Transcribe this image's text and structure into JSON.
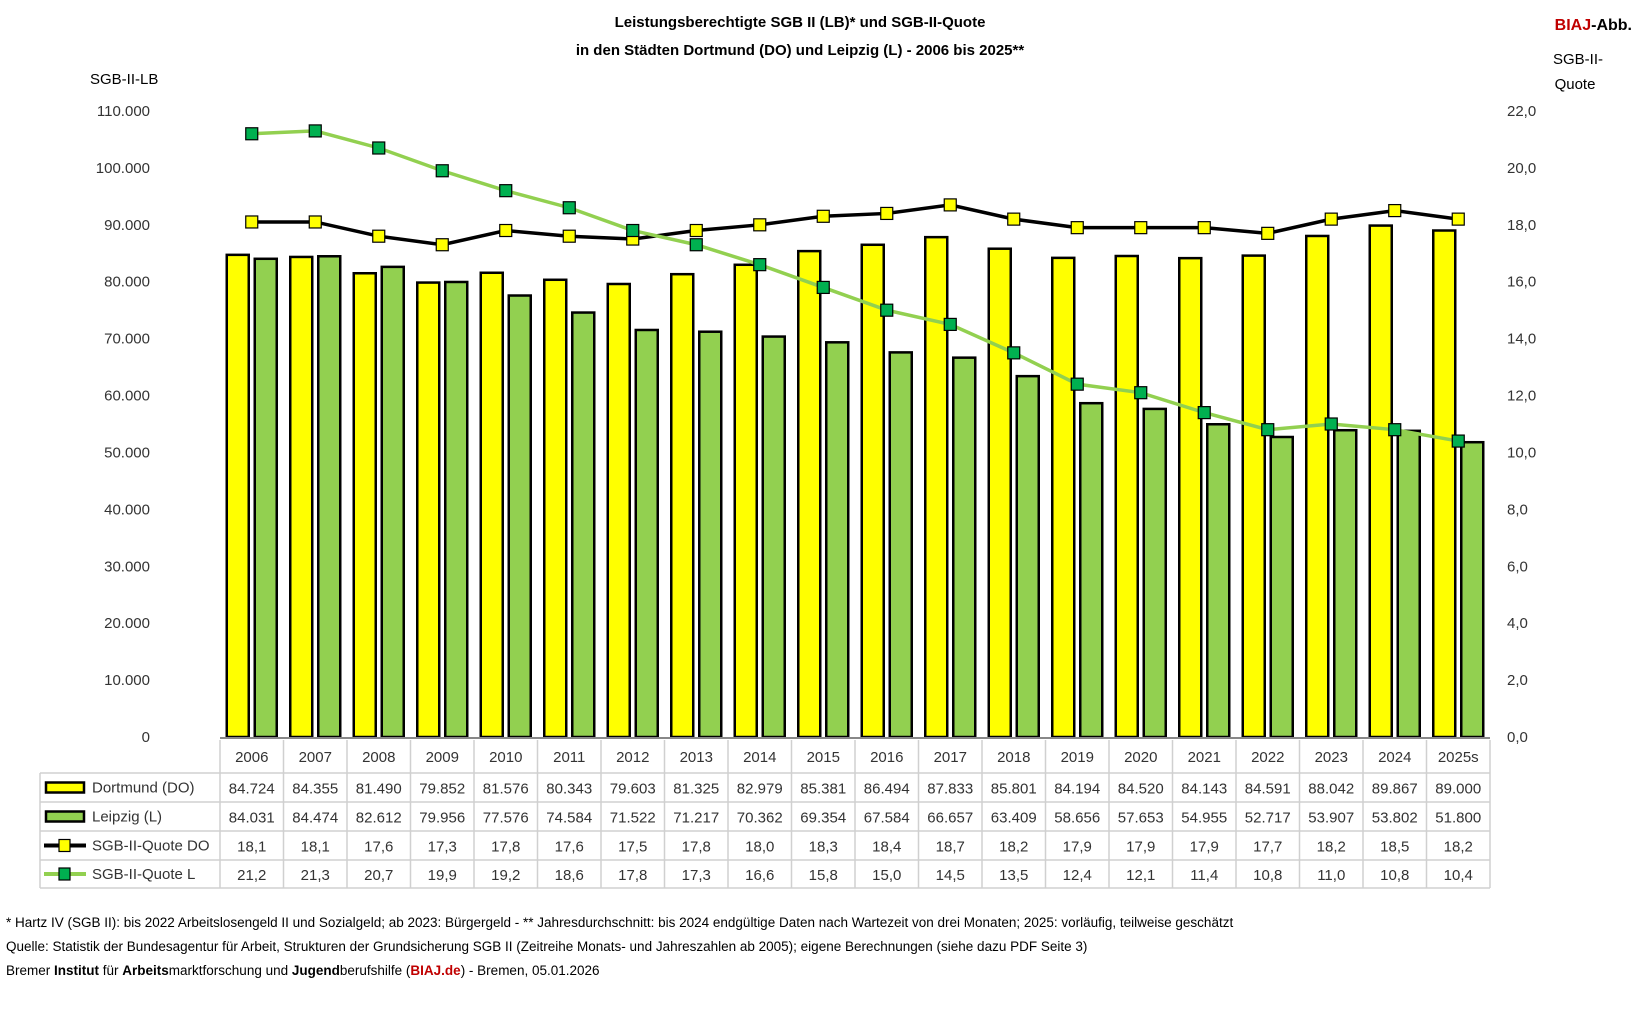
{
  "header": {
    "title_line1": "Leistungsberechtigte SGB II (LB)* und SGB-II-Quote",
    "title_line2": "in den Städten Dortmund (DO) und Leipzig (L) - 2006 bis 2025**",
    "badge_red": "BIAJ",
    "badge_rest": "-Abb."
  },
  "chart_data": {
    "type": "bar+line",
    "title": "Leistungsberechtigte SGB II (LB)* und SGB-II-Quote in den Städten Dortmund (DO) und Leipzig (L) - 2006 bis 2025**",
    "ylabel_left": "SGB-II-LB",
    "ylabel_right_line1": "SGB-II-",
    "ylabel_right_line2": "Quote",
    "ylim_left": [
      0,
      110000
    ],
    "ylim_right": [
      0,
      22
    ],
    "yticks_left": [
      "0",
      "10.000",
      "20.000",
      "30.000",
      "40.000",
      "50.000",
      "60.000",
      "70.000",
      "80.000",
      "90.000",
      "100.000",
      "110.000"
    ],
    "yticks_right": [
      "0,0",
      "2,0",
      "4,0",
      "6,0",
      "8,0",
      "10,0",
      "12,0",
      "14,0",
      "16,0",
      "18,0",
      "20,0",
      "22,0"
    ],
    "grid": false,
    "legend": "data-table",
    "categories": [
      "2006",
      "2007",
      "2008",
      "2009",
      "2010",
      "2011",
      "2012",
      "2013",
      "2014",
      "2015",
      "2016",
      "2017",
      "2018",
      "2019",
      "2020",
      "2021",
      "2022",
      "2023",
      "2024",
      "2025s"
    ],
    "series": [
      {
        "name": "Dortmund (DO)",
        "kind": "bar",
        "axis": "left",
        "color": "#ffff00",
        "values": [
          84724,
          84355,
          81490,
          79852,
          81576,
          80343,
          79603,
          81325,
          82979,
          85381,
          86494,
          87833,
          85801,
          84194,
          84520,
          84143,
          84591,
          88042,
          89867,
          89000
        ],
        "labels": [
          "84.724",
          "84.355",
          "81.490",
          "79.852",
          "81.576",
          "80.343",
          "79.603",
          "81.325",
          "82.979",
          "85.381",
          "86.494",
          "87.833",
          "85.801",
          "84.194",
          "84.520",
          "84.143",
          "84.591",
          "88.042",
          "89.867",
          "89.000"
        ]
      },
      {
        "name": "Leipzig (L)",
        "kind": "bar",
        "axis": "left",
        "color": "#92d050",
        "values": [
          84031,
          84474,
          82612,
          79956,
          77576,
          74584,
          71522,
          71217,
          70362,
          69354,
          67584,
          66657,
          63409,
          58656,
          57653,
          54955,
          52717,
          53907,
          53802,
          51800
        ],
        "labels": [
          "84.031",
          "84.474",
          "82.612",
          "79.956",
          "77.576",
          "74.584",
          "71.522",
          "71.217",
          "70.362",
          "69.354",
          "67.584",
          "66.657",
          "63.409",
          "58.656",
          "57.653",
          "54.955",
          "52.717",
          "53.907",
          "53.802",
          "51.800"
        ]
      },
      {
        "name": "SGB-II-Quote DO",
        "kind": "line",
        "axis": "right",
        "color": "#000000",
        "marker": "#ffff00",
        "values": [
          18.1,
          18.1,
          17.6,
          17.3,
          17.8,
          17.6,
          17.5,
          17.8,
          18.0,
          18.3,
          18.4,
          18.7,
          18.2,
          17.9,
          17.9,
          17.9,
          17.7,
          18.2,
          18.5,
          18.2
        ],
        "labels": [
          "18,1",
          "18,1",
          "17,6",
          "17,3",
          "17,8",
          "17,6",
          "17,5",
          "17,8",
          "18,0",
          "18,3",
          "18,4",
          "18,7",
          "18,2",
          "17,9",
          "17,9",
          "17,9",
          "17,7",
          "18,2",
          "18,5",
          "18,2"
        ]
      },
      {
        "name": "SGB-II-Quote L",
        "kind": "line",
        "axis": "right",
        "color": "#92d050",
        "marker": "#00b050",
        "values": [
          21.2,
          21.3,
          20.7,
          19.9,
          19.2,
          18.6,
          17.8,
          17.3,
          16.6,
          15.8,
          15.0,
          14.5,
          13.5,
          12.4,
          12.1,
          11.4,
          10.8,
          11.0,
          10.8,
          10.4
        ],
        "labels": [
          "21,2",
          "21,3",
          "20,7",
          "19,9",
          "19,2",
          "18,6",
          "17,8",
          "17,3",
          "16,6",
          "15,8",
          "15,0",
          "14,5",
          "13,5",
          "12,4",
          "12,1",
          "11,4",
          "10,8",
          "11,0",
          "10,8",
          "10,4"
        ]
      }
    ]
  },
  "footer": {
    "line1": "* Hartz IV (SGB II): bis 2022  Arbeitslosengeld II und Sozialgeld; ab 2023: Bürgergeld - ** Jahresdurchschnitt: bis 2024 endgültige Daten nach Wartezeit von drei Monaten; 2025: vorläufig, teilweise geschätzt",
    "line2": "Quelle: Statistik der Bundesagentur für Arbeit, Strukturen der Grundsicherung SGB II (Zeitreihe Monats- und Jahreszahlen ab 2005); eigene Berechnungen (siehe dazu PDF Seite 3)",
    "line3_parts": [
      "Bremer ",
      "Institut",
      " für ",
      "Arbeits",
      "marktforschung und ",
      "Jugend",
      "berufshilfe (",
      "BIAJ.de",
      ") - Bremen, 05.01.2026"
    ]
  }
}
